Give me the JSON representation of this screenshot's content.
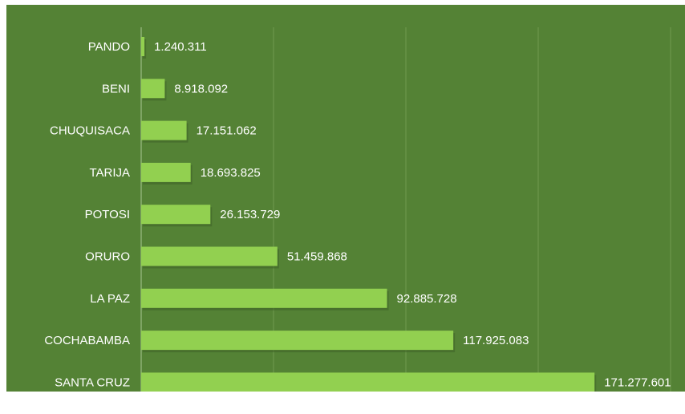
{
  "colors": {
    "background": "#548235",
    "bar": "#92d050",
    "text": "#ffffff",
    "grid": "#6f9a4f"
  },
  "chart_data": {
    "type": "bar",
    "orientation": "horizontal",
    "categories": [
      "PANDO",
      "BENI",
      "CHUQUISACA",
      "TARIJA",
      "POTOSI",
      "ORURO",
      "LA PAZ",
      "COCHABAMBA",
      "SANTA CRUZ"
    ],
    "values": [
      1240311,
      8918092,
      17151062,
      18693825,
      26153729,
      51459868,
      92885728,
      117925083,
      171277601
    ],
    "value_labels": [
      "1.240.311",
      "8.918.092",
      "17.151.062",
      "18.693.825",
      "26.153.729",
      "51.459.868",
      "92.885.728",
      "117.925.083",
      "171.277.601"
    ],
    "xlim": [
      0,
      200000000
    ],
    "grid": true,
    "legend": "none"
  }
}
